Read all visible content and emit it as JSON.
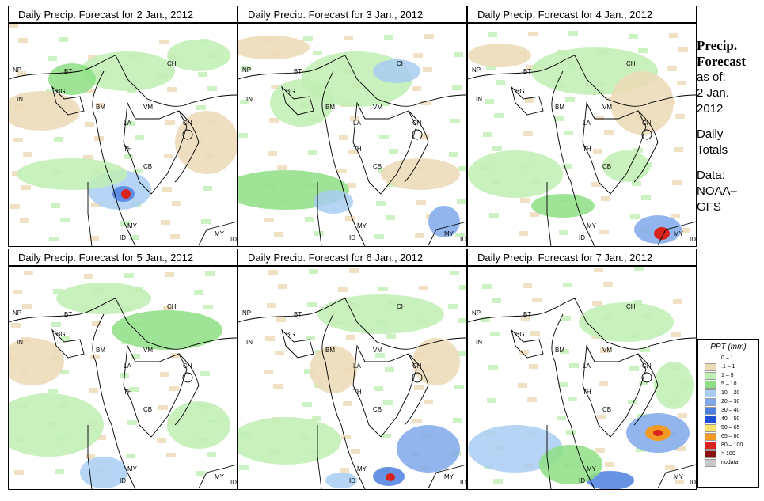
{
  "panels": [
    {
      "title": "Daily Precip. Forecast for  2 Jan., 2012"
    },
    {
      "title": "Daily Precip. Forecast for  3 Jan., 2012"
    },
    {
      "title": "Daily Precip. Forecast for  4 Jan., 2012"
    },
    {
      "title": "Daily Precip. Forecast for  5 Jan., 2012"
    },
    {
      "title": "Daily Precip. Forecast for  6 Jan., 2012"
    },
    {
      "title": "Daily Precip. Forecast for  7 Jan., 2012"
    }
  ],
  "map_labels": {
    "np": "NP",
    "bt": "BT",
    "in": "IN",
    "bg": "BG",
    "ch": "CH",
    "bm": "BM",
    "vm": "VM",
    "la": "LA",
    "cn": "CN",
    "th": "TH",
    "cb": "CB",
    "my1": "MY",
    "id1": "ID",
    "my2": "MY",
    "id2": "ID"
  },
  "side": {
    "title_line1": "Precip.",
    "title_line2": "Forecast",
    "asof": "as of:",
    "date_line1": "2 Jan.",
    "date_line2": "2012",
    "daily": "Daily",
    "totals": "Totals",
    "data_label": "Data:",
    "source1": "NOAA–",
    "source2": "GFS"
  },
  "legend": {
    "title": "PPT (mm)",
    "items": [
      {
        "label": "0 – 1",
        "color": "#ffffff"
      },
      {
        "label": ".1 – 1",
        "color": "#ecd9b6"
      },
      {
        "label": "1 – 5",
        "color": "#bfeeb3"
      },
      {
        "label": "5 – 10",
        "color": "#8edf84"
      },
      {
        "label": "10 – 20",
        "color": "#a9ccf2"
      },
      {
        "label": "20 – 30",
        "color": "#7fa8ea"
      },
      {
        "label": "30 – 40",
        "color": "#4d80e0"
      },
      {
        "label": "40 – 50",
        "color": "#1f4fd6"
      },
      {
        "label": "50 – 65",
        "color": "#f7e36b"
      },
      {
        "label": "65 – 80",
        "color": "#f39a24"
      },
      {
        "label": "80 – 100",
        "color": "#d8241c"
      },
      {
        "label": "> 100",
        "color": "#8a0f0f"
      },
      {
        "label": "nodata",
        "color": "#c8c8c8"
      }
    ]
  }
}
